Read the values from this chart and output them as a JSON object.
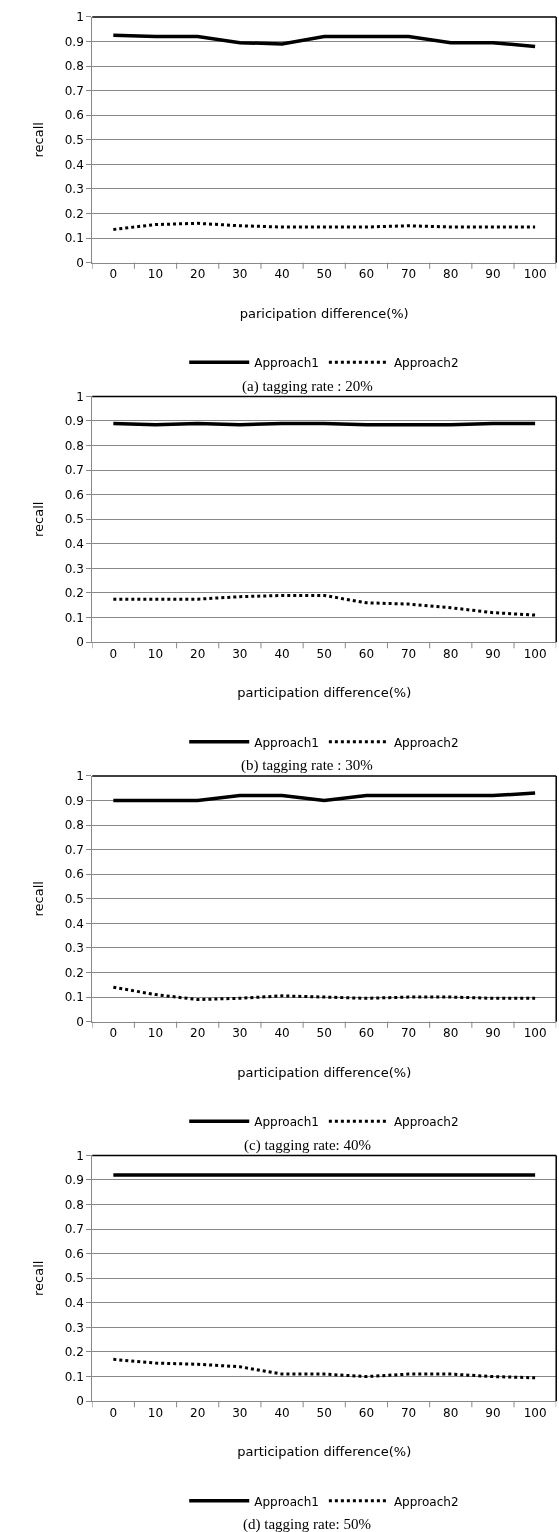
{
  "chart_data": [
    {
      "type": "line",
      "categories": [
        "0",
        "10",
        "20",
        "30",
        "40",
        "50",
        "60",
        "70",
        "80",
        "90",
        "100"
      ],
      "xlabel": "paricipation difference(%)",
      "ylabel": "recall",
      "ylim": [
        0,
        1
      ],
      "yticks": [
        0,
        0.1,
        0.2,
        0.3,
        0.4,
        0.5,
        0.6,
        0.7,
        0.8,
        0.9,
        1
      ],
      "grid": "y",
      "legend": "bottom",
      "annotations": [
        "(a) tagging rate : 20%"
      ],
      "series": [
        {
          "name": "Approach1",
          "color": "#000000",
          "line_style": "solid",
          "values": [
            0.925,
            0.92,
            0.92,
            0.895,
            0.89,
            0.92,
            0.92,
            0.92,
            0.895,
            0.895,
            0.88
          ]
        },
        {
          "name": "Approach2",
          "color": "#000000",
          "line_style": "dotted",
          "values": [
            0.135,
            0.155,
            0.16,
            0.15,
            0.145,
            0.145,
            0.145,
            0.15,
            0.145,
            0.145,
            0.145
          ]
        }
      ]
    },
    {
      "type": "line",
      "categories": [
        "0",
        "10",
        "20",
        "30",
        "40",
        "50",
        "60",
        "70",
        "80",
        "90",
        "100"
      ],
      "xlabel": "participation difference(%)",
      "ylabel": "recall",
      "ylim": [
        0,
        1
      ],
      "yticks": [
        0,
        0.1,
        0.2,
        0.3,
        0.4,
        0.5,
        0.6,
        0.7,
        0.8,
        0.9,
        1
      ],
      "grid": "y",
      "legend": "bottom",
      "annotations": [
        "(b) tagging rate : 30%"
      ],
      "series": [
        {
          "name": "Approach1",
          "color": "#000000",
          "line_style": "solid",
          "values": [
            0.89,
            0.885,
            0.89,
            0.885,
            0.89,
            0.89,
            0.885,
            0.885,
            0.885,
            0.89,
            0.89
          ]
        },
        {
          "name": "Approach2",
          "color": "#000000",
          "line_style": "dotted",
          "values": [
            0.175,
            0.175,
            0.175,
            0.185,
            0.19,
            0.19,
            0.16,
            0.155,
            0.14,
            0.12,
            0.11
          ]
        }
      ]
    },
    {
      "type": "line",
      "categories": [
        "0",
        "10",
        "20",
        "30",
        "40",
        "50",
        "60",
        "70",
        "80",
        "90",
        "100"
      ],
      "xlabel": "participation difference(%)",
      "ylabel": "recall",
      "ylim": [
        0,
        1
      ],
      "yticks": [
        0,
        0.1,
        0.2,
        0.3,
        0.4,
        0.5,
        0.6,
        0.7,
        0.8,
        0.9,
        1
      ],
      "grid": "y",
      "legend": "bottom",
      "annotations": [
        "(c) tagging rate: 40%"
      ],
      "series": [
        {
          "name": "Approach1",
          "color": "#000000",
          "line_style": "solid",
          "values": [
            0.9,
            0.9,
            0.9,
            0.92,
            0.92,
            0.9,
            0.92,
            0.92,
            0.92,
            0.92,
            0.93
          ]
        },
        {
          "name": "Approach2",
          "color": "#000000",
          "line_style": "dotted",
          "values": [
            0.14,
            0.11,
            0.09,
            0.095,
            0.105,
            0.1,
            0.095,
            0.1,
            0.1,
            0.095,
            0.095
          ]
        }
      ]
    },
    {
      "type": "line",
      "categories": [
        "0",
        "10",
        "20",
        "30",
        "40",
        "50",
        "60",
        "70",
        "80",
        "90",
        "100"
      ],
      "xlabel": "participation difference(%)",
      "ylabel": "recall",
      "ylim": [
        0,
        1
      ],
      "yticks": [
        0,
        0.1,
        0.2,
        0.3,
        0.4,
        0.5,
        0.6,
        0.7,
        0.8,
        0.9,
        1
      ],
      "grid": "y",
      "legend": "bottom",
      "annotations": [
        "(d) tagging rate: 50%"
      ],
      "series": [
        {
          "name": "Approach1",
          "color": "#000000",
          "line_style": "solid",
          "values": [
            0.92,
            0.92,
            0.92,
            0.92,
            0.92,
            0.92,
            0.92,
            0.92,
            0.92,
            0.92,
            0.92
          ]
        },
        {
          "name": "Approach2",
          "color": "#000000",
          "line_style": "dotted",
          "values": [
            0.17,
            0.155,
            0.15,
            0.14,
            0.11,
            0.11,
            0.1,
            0.11,
            0.11,
            0.1,
            0.095
          ]
        }
      ]
    }
  ]
}
